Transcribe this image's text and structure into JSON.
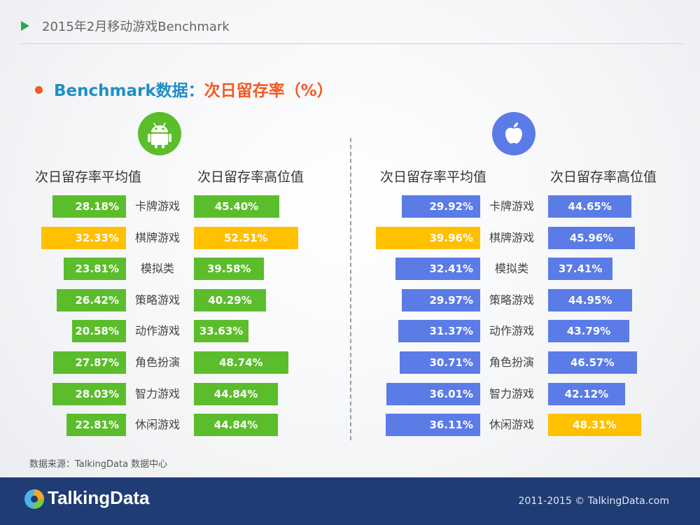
{
  "header": {
    "title": "2015年2月移动游戏Benchmark"
  },
  "subtitle": {
    "part1": "Benchmark数据：",
    "part2": "次日留存率（%）"
  },
  "colors": {
    "green": "#5bbd2b",
    "yellow": "#ffc000",
    "blue": "#5b7be6",
    "orange_dot": "#f15a22",
    "title_blue": "#1e8fc6",
    "footer_bg": "#1f3c74"
  },
  "icons": {
    "android": "android-icon",
    "ios": "apple-icon"
  },
  "chart_data": [
    {
      "type": "bar",
      "platform": "Android",
      "categories": [
        "卡牌游戏",
        "棋牌游戏",
        "模拟类",
        "策略游戏",
        "动作游戏",
        "角色扮演",
        "智力游戏",
        "休闲游戏"
      ],
      "series": [
        {
          "name": "次日留存率平均值",
          "values": [
            28.18,
            32.33,
            23.81,
            26.42,
            20.58,
            27.87,
            28.03,
            22.81
          ],
          "labels": [
            "28.18%",
            "32.33%",
            "23.81%",
            "26.42%",
            "20.58%",
            "27.87%",
            "28.03%",
            "22.81%"
          ],
          "highlight": [
            false,
            true,
            false,
            false,
            false,
            false,
            false,
            false
          ]
        },
        {
          "name": "次日留存率高位值",
          "values": [
            45.4,
            52.51,
            39.58,
            40.29,
            33.63,
            48.74,
            44.84,
            44.84
          ],
          "labels": [
            "45.40%",
            "52.51%",
            "39.58%",
            "40.29%",
            "33.63%",
            "48.74%",
            "44.84%",
            "44.84%"
          ],
          "highlight": [
            false,
            true,
            false,
            false,
            false,
            false,
            false,
            false
          ]
        }
      ]
    },
    {
      "type": "bar",
      "platform": "iOS",
      "categories": [
        "卡牌游戏",
        "棋牌游戏",
        "模拟类",
        "策略游戏",
        "动作游戏",
        "角色扮演",
        "智力游戏",
        "休闲游戏"
      ],
      "series": [
        {
          "name": "次日留存率平均值",
          "values": [
            29.92,
            39.96,
            32.41,
            29.97,
            31.37,
            30.71,
            36.01,
            36.11
          ],
          "labels": [
            "29.92%",
            "39.96%",
            "32.41%",
            "29.97%",
            "31.37%",
            "30.71%",
            "36.01%",
            "36.11%"
          ],
          "highlight": [
            false,
            true,
            false,
            false,
            false,
            false,
            false,
            false
          ]
        },
        {
          "name": "次日留存率高位值",
          "values": [
            44.65,
            45.96,
            37.41,
            44.95,
            43.79,
            46.57,
            42.12,
            48.31
          ],
          "labels": [
            "44.65%",
            "45.96%",
            "37.41%",
            "44.95%",
            "43.79%",
            "46.57%",
            "42.12%",
            "48.31%"
          ],
          "highlight": [
            false,
            false,
            false,
            false,
            false,
            false,
            false,
            true
          ]
        }
      ]
    }
  ],
  "source": "数据来源：TalkingData 数据中心",
  "footer": {
    "brand": "TalkingData",
    "copyright": "2011-2015 © TalkingData.com"
  }
}
